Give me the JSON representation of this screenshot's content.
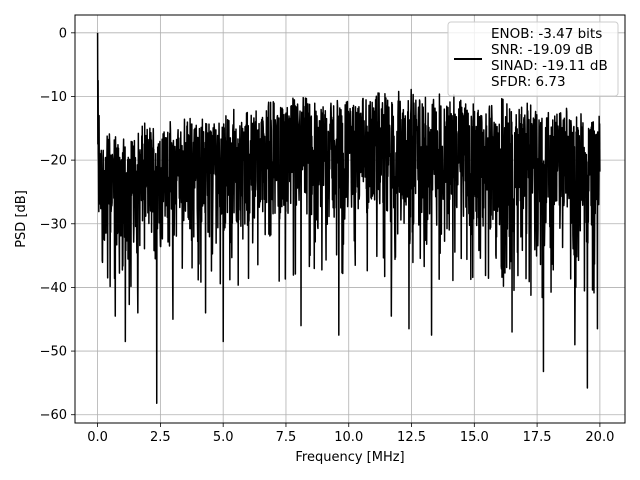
{
  "chart_data": {
    "type": "line",
    "title": "",
    "xlabel": "Frequency [MHz]",
    "ylabel": "PSD [dB]",
    "xlim": [
      -0.9,
      21.0
    ],
    "ylim": [
      -61.3,
      2.8
    ],
    "xticks": [
      0.0,
      2.5,
      5.0,
      7.5,
      10.0,
      12.5,
      15.0,
      17.5,
      20.0
    ],
    "xtick_labels": [
      "0.0",
      "2.5",
      "5.0",
      "7.5",
      "10.0",
      "12.5",
      "15.0",
      "17.5",
      "20.0"
    ],
    "yticks": [
      0,
      -10,
      -20,
      -30,
      -40,
      -50,
      -60
    ],
    "ytick_labels": [
      "0",
      "−10",
      "−20",
      "−30",
      "−40",
      "−50",
      "−60"
    ],
    "grid": true,
    "legend_position": "top-right",
    "legend": [
      "ENOB: -3.47 bits",
      "SNR: -19.09 dB",
      "SINAD: -19.11 dB",
      "SFDR: 6.73"
    ],
    "line_color": "#000000",
    "series": [
      {
        "x_start": 0.0,
        "x_end": 20.0,
        "num_points": 2048,
        "envelope_x": [
          0.0,
          0.5,
          1.0,
          2.0,
          3.0,
          5.0,
          7.5,
          10.0,
          12.5,
          15.0,
          17.5,
          20.0
        ],
        "upper_envelope": [
          -18,
          -16,
          -17,
          -15,
          -15,
          -13,
          -11,
          -11,
          -10,
          -11,
          -12,
          -14
        ],
        "lower_envelope": [
          -33,
          -35,
          -36,
          -34,
          -33,
          -32,
          -31,
          -31,
          -31,
          -32,
          -34,
          -33
        ],
        "peaks": [
          [
            0.0,
            0.0
          ],
          [
            0.02,
            -7.5
          ],
          [
            0.06,
            -13
          ],
          [
            0.12,
            -19
          ]
        ],
        "notable_dips": [
          [
            0.4,
            -38.5
          ],
          [
            0.7,
            -44.5
          ],
          [
            1.1,
            -48.5
          ],
          [
            1.6,
            -44
          ],
          [
            2.35,
            -58.2
          ],
          [
            3.0,
            -45
          ],
          [
            4.3,
            -44
          ],
          [
            5.0,
            -48.5
          ],
          [
            8.1,
            -46
          ],
          [
            9.6,
            -47.5
          ],
          [
            11.7,
            -44.5
          ],
          [
            12.4,
            -46.5
          ],
          [
            13.3,
            -47.5
          ],
          [
            16.5,
            -47
          ],
          [
            17.75,
            -53.2
          ],
          [
            19.0,
            -49
          ],
          [
            19.5,
            -55.8
          ],
          [
            19.9,
            -46.5
          ]
        ]
      }
    ]
  }
}
